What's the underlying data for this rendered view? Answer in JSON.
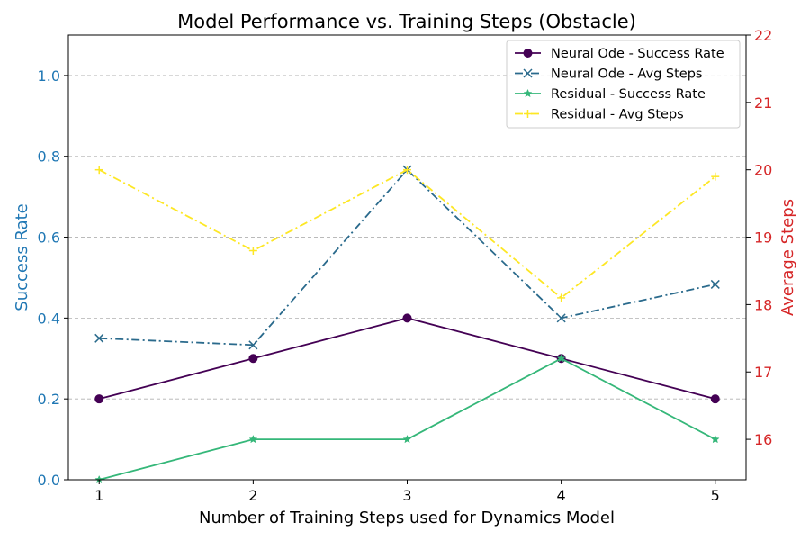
{
  "chart_data": {
    "type": "line",
    "title": "Model Performance vs. Training Steps (Obstacle)",
    "xlabel": "Number of Training Steps used for Dynamics Model",
    "ylabel_left": "Success Rate",
    "ylabel_right": "Average Steps",
    "x": [
      1,
      2,
      3,
      4,
      5
    ],
    "xlim": [
      0.8,
      5.2
    ],
    "ylim_left": [
      0,
      1.1
    ],
    "ylim_right": [
      15.4,
      22
    ],
    "xticks": [
      "1",
      "2",
      "3",
      "4",
      "5"
    ],
    "yticks_left": [
      "0.0",
      "0.2",
      "0.4",
      "0.6",
      "0.8",
      "1.0"
    ],
    "yticks_right": [
      "16",
      "17",
      "18",
      "19",
      "20",
      "21",
      "22"
    ],
    "grid": "horizontal dashed (left axis)",
    "legend_position": "top-right",
    "left_axis_color": "#1f77b4",
    "right_axis_color": "#d62728",
    "series": [
      {
        "name": "Neural Ode - Success Rate",
        "axis": "left",
        "values": [
          0.2,
          0.3,
          0.4,
          0.3,
          0.2
        ],
        "color": "#440154",
        "linestyle": "solid",
        "marker": "circle"
      },
      {
        "name": "Neural Ode - Avg Steps",
        "axis": "right",
        "values": [
          17.5,
          17.4,
          20.0,
          17.8,
          18.3
        ],
        "color": "#2a6a8c",
        "linestyle": "dashdot",
        "marker": "x"
      },
      {
        "name": "Residual - Success Rate",
        "axis": "left",
        "values": [
          0.0,
          0.1,
          0.1,
          0.3,
          0.1
        ],
        "color": "#35b779",
        "linestyle": "solid",
        "marker": "star"
      },
      {
        "name": "Residual - Avg Steps",
        "axis": "right",
        "values": [
          20.0,
          18.8,
          20.0,
          18.1,
          19.9
        ],
        "color": "#fde725",
        "linestyle": "dashdot",
        "marker": "plus"
      }
    ]
  }
}
